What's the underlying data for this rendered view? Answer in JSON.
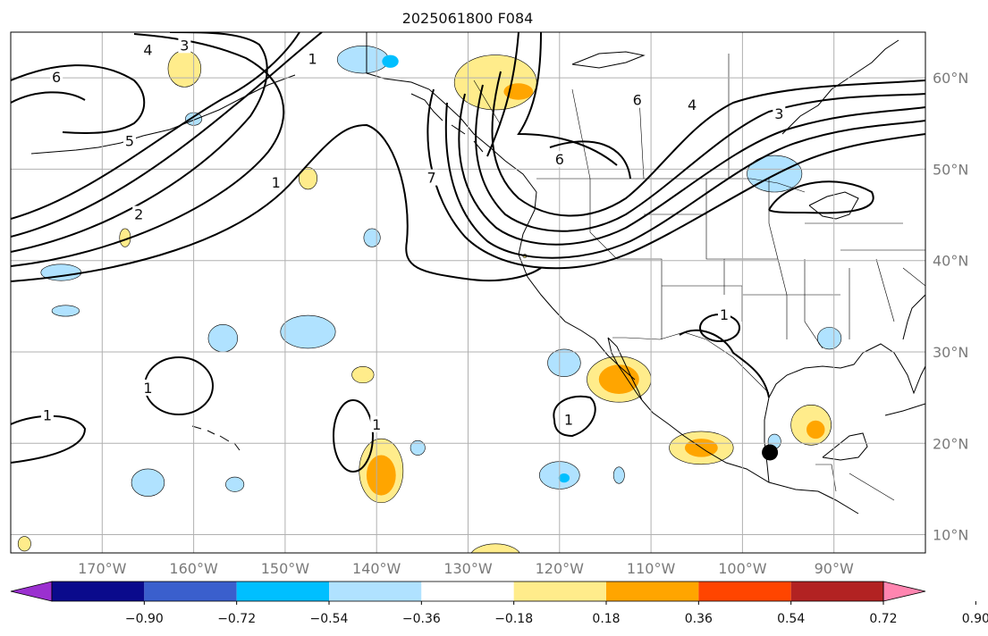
{
  "title": "2025061800 F084",
  "map": {
    "lon_range": [
      -180,
      -80
    ],
    "lat_range": [
      8,
      65
    ],
    "lon_ticks": [
      {
        "value": -170,
        "label": "170°W"
      },
      {
        "value": -160,
        "label": "160°W"
      },
      {
        "value": -150,
        "label": "150°W"
      },
      {
        "value": -140,
        "label": "140°W"
      },
      {
        "value": -130,
        "label": "130°W"
      },
      {
        "value": -120,
        "label": "120°W"
      },
      {
        "value": -110,
        "label": "110°W"
      },
      {
        "value": -100,
        "label": "100°W"
      },
      {
        "value": -90,
        "label": "90°W"
      }
    ],
    "lat_ticks": [
      {
        "value": 60,
        "label": "60°N"
      },
      {
        "value": 50,
        "label": "50°N"
      },
      {
        "value": 40,
        "label": "40°N"
      },
      {
        "value": 30,
        "label": "30°N"
      },
      {
        "value": 20,
        "label": "20°N"
      },
      {
        "value": 10,
        "label": "10°N"
      }
    ],
    "grid": true,
    "marker": {
      "lon": -97,
      "lat": 19,
      "color": "#000000"
    },
    "contour_labels": [
      {
        "text": "6",
        "lon": -175,
        "lat": 60
      },
      {
        "text": "4",
        "lon": -165,
        "lat": 63
      },
      {
        "text": "3",
        "lon": -161,
        "lat": 63.5
      },
      {
        "text": "5",
        "lon": -167,
        "lat": 53
      },
      {
        "text": "2",
        "lon": -166,
        "lat": 45
      },
      {
        "text": "1",
        "lon": -151,
        "lat": 48.5
      },
      {
        "text": "1",
        "lon": -147,
        "lat": 62
      },
      {
        "text": "7",
        "lon": -134,
        "lat": 49
      },
      {
        "text": "6",
        "lon": -120,
        "lat": 51
      },
      {
        "text": "6",
        "lon": -111.5,
        "lat": 57.5
      },
      {
        "text": "4",
        "lon": -105.5,
        "lat": 57
      },
      {
        "text": "3",
        "lon": -96,
        "lat": 56
      },
      {
        "text": "1",
        "lon": -165,
        "lat": 26
      },
      {
        "text": "1",
        "lon": -176,
        "lat": 23
      },
      {
        "text": "1",
        "lon": -140,
        "lat": 22
      },
      {
        "text": "1",
        "lon": -119,
        "lat": 22.5
      },
      {
        "text": "1",
        "lon": -102,
        "lat": 34
      }
    ],
    "land_label_note": ""
  },
  "colorbar": {
    "colors": [
      "#9b30d0",
      "#0a0a8c",
      "#3a5fcd",
      "#00bfff",
      "#b0e2ff",
      "#ffffff",
      "#ffec8b",
      "#ffa500",
      "#ff4500",
      "#b22222",
      "#ff85b0"
    ],
    "ticks": [
      "−0.90",
      "−0.72",
      "−0.54",
      "−0.36",
      "−0.18",
      "0.18",
      "0.36",
      "0.54",
      "0.72",
      "0.90"
    ]
  },
  "shading": {
    "positive": [
      {
        "lon": -161,
        "lat": 61,
        "rx": 1.8,
        "ry": 2.0,
        "level": 1
      },
      {
        "lon": -127,
        "lat": 59.5,
        "rx": 4.5,
        "ry": 3.0,
        "level": 1
      },
      {
        "lon": -124.5,
        "lat": 58.5,
        "rx": 1.6,
        "ry": 0.9,
        "level": 2
      },
      {
        "lon": -147.5,
        "lat": 49,
        "rx": 1.0,
        "ry": 1.2,
        "level": 1
      },
      {
        "lon": -167.5,
        "lat": 42.5,
        "rx": 0.6,
        "ry": 1.0,
        "level": 1
      },
      {
        "lon": -113.5,
        "lat": 27,
        "rx": 3.5,
        "ry": 2.5,
        "level": 1
      },
      {
        "lon": -113.5,
        "lat": 27,
        "rx": 2.2,
        "ry": 1.6,
        "level": 2
      },
      {
        "lon": -104.5,
        "lat": 19.5,
        "rx": 3.5,
        "ry": 1.8,
        "level": 1
      },
      {
        "lon": -104.5,
        "lat": 19.5,
        "rx": 1.8,
        "ry": 1.0,
        "level": 2
      },
      {
        "lon": -92.5,
        "lat": 22,
        "rx": 2.2,
        "ry": 2.2,
        "level": 1
      },
      {
        "lon": -92,
        "lat": 21.5,
        "rx": 1.0,
        "ry": 1.0,
        "level": 2
      },
      {
        "lon": -139.5,
        "lat": 17,
        "rx": 2.4,
        "ry": 3.5,
        "level": 1
      },
      {
        "lon": -139.5,
        "lat": 16.5,
        "rx": 1.6,
        "ry": 2.2,
        "level": 2
      },
      {
        "lon": -141.5,
        "lat": 27.5,
        "rx": 1.2,
        "ry": 0.9,
        "level": 1
      },
      {
        "lon": -178.5,
        "lat": 9,
        "rx": 0.7,
        "ry": 0.8,
        "level": 1
      },
      {
        "lon": -127,
        "lat": 7.5,
        "rx": 2.8,
        "ry": 1.5,
        "level": 1
      },
      {
        "lon": -123.8,
        "lat": 40.5,
        "rx": 0.2,
        "ry": 0.2,
        "level": 1
      }
    ],
    "negative": [
      {
        "lon": -141.5,
        "lat": 62,
        "rx": 2.8,
        "ry": 1.5,
        "level": 1
      },
      {
        "lon": -138.5,
        "lat": 61.8,
        "rx": 0.9,
        "ry": 0.7,
        "level": 2
      },
      {
        "lon": -160,
        "lat": 55.5,
        "rx": 0.9,
        "ry": 0.7,
        "level": 1
      },
      {
        "lon": -174.5,
        "lat": 38.7,
        "rx": 2.2,
        "ry": 0.9,
        "level": 1
      },
      {
        "lon": -140.5,
        "lat": 42.5,
        "rx": 0.9,
        "ry": 1.0,
        "level": 1
      },
      {
        "lon": -147.5,
        "lat": 32.2,
        "rx": 3.0,
        "ry": 1.8,
        "level": 1
      },
      {
        "lon": -156.8,
        "lat": 31.5,
        "rx": 1.6,
        "ry": 1.5,
        "level": 1
      },
      {
        "lon": -174,
        "lat": 34.5,
        "rx": 1.5,
        "ry": 0.6,
        "level": 1
      },
      {
        "lon": -119.5,
        "lat": 28.8,
        "rx": 1.8,
        "ry": 1.5,
        "level": 1
      },
      {
        "lon": -165,
        "lat": 15.7,
        "rx": 1.8,
        "ry": 1.5,
        "level": 1
      },
      {
        "lon": -155.5,
        "lat": 15.5,
        "rx": 1.0,
        "ry": 0.8,
        "level": 1
      },
      {
        "lon": -135.5,
        "lat": 19.5,
        "rx": 0.8,
        "ry": 0.8,
        "level": 1
      },
      {
        "lon": -120,
        "lat": 16.5,
        "rx": 2.2,
        "ry": 1.5,
        "level": 1
      },
      {
        "lon": -119.5,
        "lat": 16.2,
        "rx": 0.6,
        "ry": 0.5,
        "level": 2
      },
      {
        "lon": -113.5,
        "lat": 16.5,
        "rx": 0.6,
        "ry": 0.9,
        "level": 1
      },
      {
        "lon": -96.5,
        "lat": 20.2,
        "rx": 0.7,
        "ry": 0.8,
        "level": 1
      },
      {
        "lon": -96.5,
        "lat": 49.5,
        "rx": 3.0,
        "ry": 2.0,
        "level": 1
      },
      {
        "lon": -90.5,
        "lat": 31.5,
        "rx": 1.3,
        "ry": 1.2,
        "level": 1
      }
    ]
  }
}
